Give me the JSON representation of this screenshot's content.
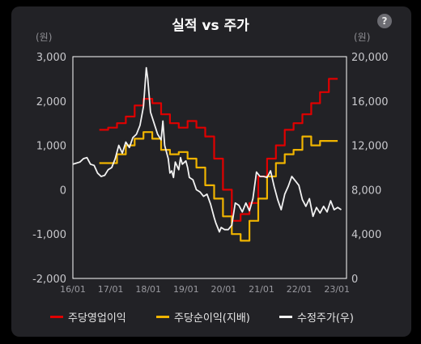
{
  "header": {
    "title": "실적 vs 주가",
    "help_icon": "?"
  },
  "chart_data": {
    "type": "line",
    "title": "실적 vs 주가",
    "left_axis": {
      "unit": "(원)",
      "range": [
        -2000,
        3000
      ],
      "ticks": [
        "3,000",
        "2,000",
        "1,000",
        "0",
        "-1,000",
        "-2,000"
      ]
    },
    "right_axis": {
      "unit": "(원)",
      "range": [
        0,
        20000
      ],
      "ticks": [
        "20,000",
        "16,000",
        "12,000",
        "8,000",
        "4,000",
        "0"
      ]
    },
    "x_ticks": [
      "16/01",
      "17/01",
      "18/01",
      "19/01",
      "20/01",
      "21/01",
      "22/01",
      "23/01"
    ],
    "grid": false,
    "legend_position": "bottom",
    "series": [
      {
        "name": "주당영업이익",
        "axis": "left",
        "color": "#e00000",
        "step": true,
        "points": [
          [
            2016.75,
            1350
          ],
          [
            2017.0,
            1400
          ],
          [
            2017.25,
            1500
          ],
          [
            2017.5,
            1650
          ],
          [
            2017.75,
            1900
          ],
          [
            2018.0,
            2050
          ],
          [
            2018.25,
            1950
          ],
          [
            2018.5,
            1700
          ],
          [
            2018.75,
            1500
          ],
          [
            2019.0,
            1400
          ],
          [
            2019.25,
            1550
          ],
          [
            2019.5,
            1400
          ],
          [
            2019.75,
            1200
          ],
          [
            2020.0,
            700
          ],
          [
            2020.25,
            0
          ],
          [
            2020.5,
            -700
          ],
          [
            2020.75,
            -550
          ],
          [
            2021.0,
            -300
          ],
          [
            2021.25,
            300
          ],
          [
            2021.5,
            700
          ],
          [
            2021.75,
            1000
          ],
          [
            2022.0,
            1350
          ],
          [
            2022.25,
            1500
          ],
          [
            2022.5,
            1700
          ],
          [
            2022.75,
            1950
          ],
          [
            2023.0,
            2200
          ],
          [
            2023.25,
            2500
          ],
          [
            2023.5,
            2500
          ]
        ]
      },
      {
        "name": "주당순이익(지배)",
        "axis": "left",
        "color": "#f0b400",
        "step": true,
        "points": [
          [
            2016.75,
            600
          ],
          [
            2017.0,
            600
          ],
          [
            2017.25,
            800
          ],
          [
            2017.5,
            1000
          ],
          [
            2017.75,
            1150
          ],
          [
            2018.0,
            1300
          ],
          [
            2018.25,
            1150
          ],
          [
            2018.5,
            900
          ],
          [
            2018.75,
            800
          ],
          [
            2019.0,
            850
          ],
          [
            2019.25,
            700
          ],
          [
            2019.5,
            500
          ],
          [
            2019.75,
            100
          ],
          [
            2020.0,
            -200
          ],
          [
            2020.25,
            -600
          ],
          [
            2020.5,
            -1000
          ],
          [
            2020.75,
            -1150
          ],
          [
            2021.0,
            -700
          ],
          [
            2021.25,
            -200
          ],
          [
            2021.5,
            300
          ],
          [
            2021.75,
            600
          ],
          [
            2022.0,
            800
          ],
          [
            2022.25,
            900
          ],
          [
            2022.5,
            1200
          ],
          [
            2022.75,
            1000
          ],
          [
            2023.0,
            1100
          ],
          [
            2023.5,
            1100
          ]
        ]
      },
      {
        "name": "수정주가(우)",
        "axis": "right",
        "color": "#f2f2f2",
        "step": false,
        "points": [
          [
            2016.0,
            10300
          ],
          [
            2016.1,
            10400
          ],
          [
            2016.2,
            10500
          ],
          [
            2016.3,
            10800
          ],
          [
            2016.4,
            10900
          ],
          [
            2016.5,
            10300
          ],
          [
            2016.6,
            10200
          ],
          [
            2016.7,
            9500
          ],
          [
            2016.8,
            9200
          ],
          [
            2016.9,
            9300
          ],
          [
            2017.0,
            9800
          ],
          [
            2017.1,
            10000
          ],
          [
            2017.2,
            10800
          ],
          [
            2017.3,
            12000
          ],
          [
            2017.4,
            11300
          ],
          [
            2017.5,
            12300
          ],
          [
            2017.6,
            11800
          ],
          [
            2017.7,
            12700
          ],
          [
            2017.8,
            13000
          ],
          [
            2017.9,
            13800
          ],
          [
            2018.0,
            15500
          ],
          [
            2018.08,
            19000
          ],
          [
            2018.12,
            18000
          ],
          [
            2018.2,
            15000
          ],
          [
            2018.3,
            14000
          ],
          [
            2018.4,
            13000
          ],
          [
            2018.5,
            12500
          ],
          [
            2018.55,
            14200
          ],
          [
            2018.6,
            12000
          ],
          [
            2018.7,
            10800
          ],
          [
            2018.75,
            9500
          ],
          [
            2018.8,
            9700
          ],
          [
            2018.85,
            9100
          ],
          [
            2018.9,
            10500
          ],
          [
            2019.0,
            9800
          ],
          [
            2019.05,
            10900
          ],
          [
            2019.1,
            10300
          ],
          [
            2019.2,
            10600
          ],
          [
            2019.25,
            10000
          ],
          [
            2019.3,
            9100
          ],
          [
            2019.4,
            8900
          ],
          [
            2019.5,
            8000
          ],
          [
            2019.6,
            7800
          ],
          [
            2019.7,
            7400
          ],
          [
            2019.8,
            7600
          ],
          [
            2019.9,
            6700
          ],
          [
            2020.0,
            5500
          ],
          [
            2020.05,
            5000
          ],
          [
            2020.15,
            4200
          ],
          [
            2020.2,
            4600
          ],
          [
            2020.3,
            4400
          ],
          [
            2020.4,
            4400
          ],
          [
            2020.5,
            4800
          ],
          [
            2020.6,
            6800
          ],
          [
            2020.7,
            6600
          ],
          [
            2020.8,
            6000
          ],
          [
            2020.9,
            6800
          ],
          [
            2021.0,
            6100
          ],
          [
            2021.1,
            7200
          ],
          [
            2021.2,
            9600
          ],
          [
            2021.3,
            9200
          ],
          [
            2021.4,
            9200
          ],
          [
            2021.5,
            9100
          ],
          [
            2021.6,
            9700
          ],
          [
            2021.7,
            8300
          ],
          [
            2021.8,
            7100
          ],
          [
            2021.9,
            6200
          ],
          [
            2022.0,
            7600
          ],
          [
            2022.1,
            8300
          ],
          [
            2022.2,
            9200
          ],
          [
            2022.3,
            8800
          ],
          [
            2022.4,
            8400
          ],
          [
            2022.5,
            7100
          ],
          [
            2022.6,
            6500
          ],
          [
            2022.7,
            7200
          ],
          [
            2022.8,
            5600
          ],
          [
            2022.9,
            6400
          ],
          [
            2023.0,
            5900
          ],
          [
            2023.1,
            6500
          ],
          [
            2023.2,
            6000
          ],
          [
            2023.3,
            7000
          ],
          [
            2023.4,
            6200
          ],
          [
            2023.5,
            6400
          ],
          [
            2023.6,
            6200
          ]
        ]
      }
    ]
  }
}
